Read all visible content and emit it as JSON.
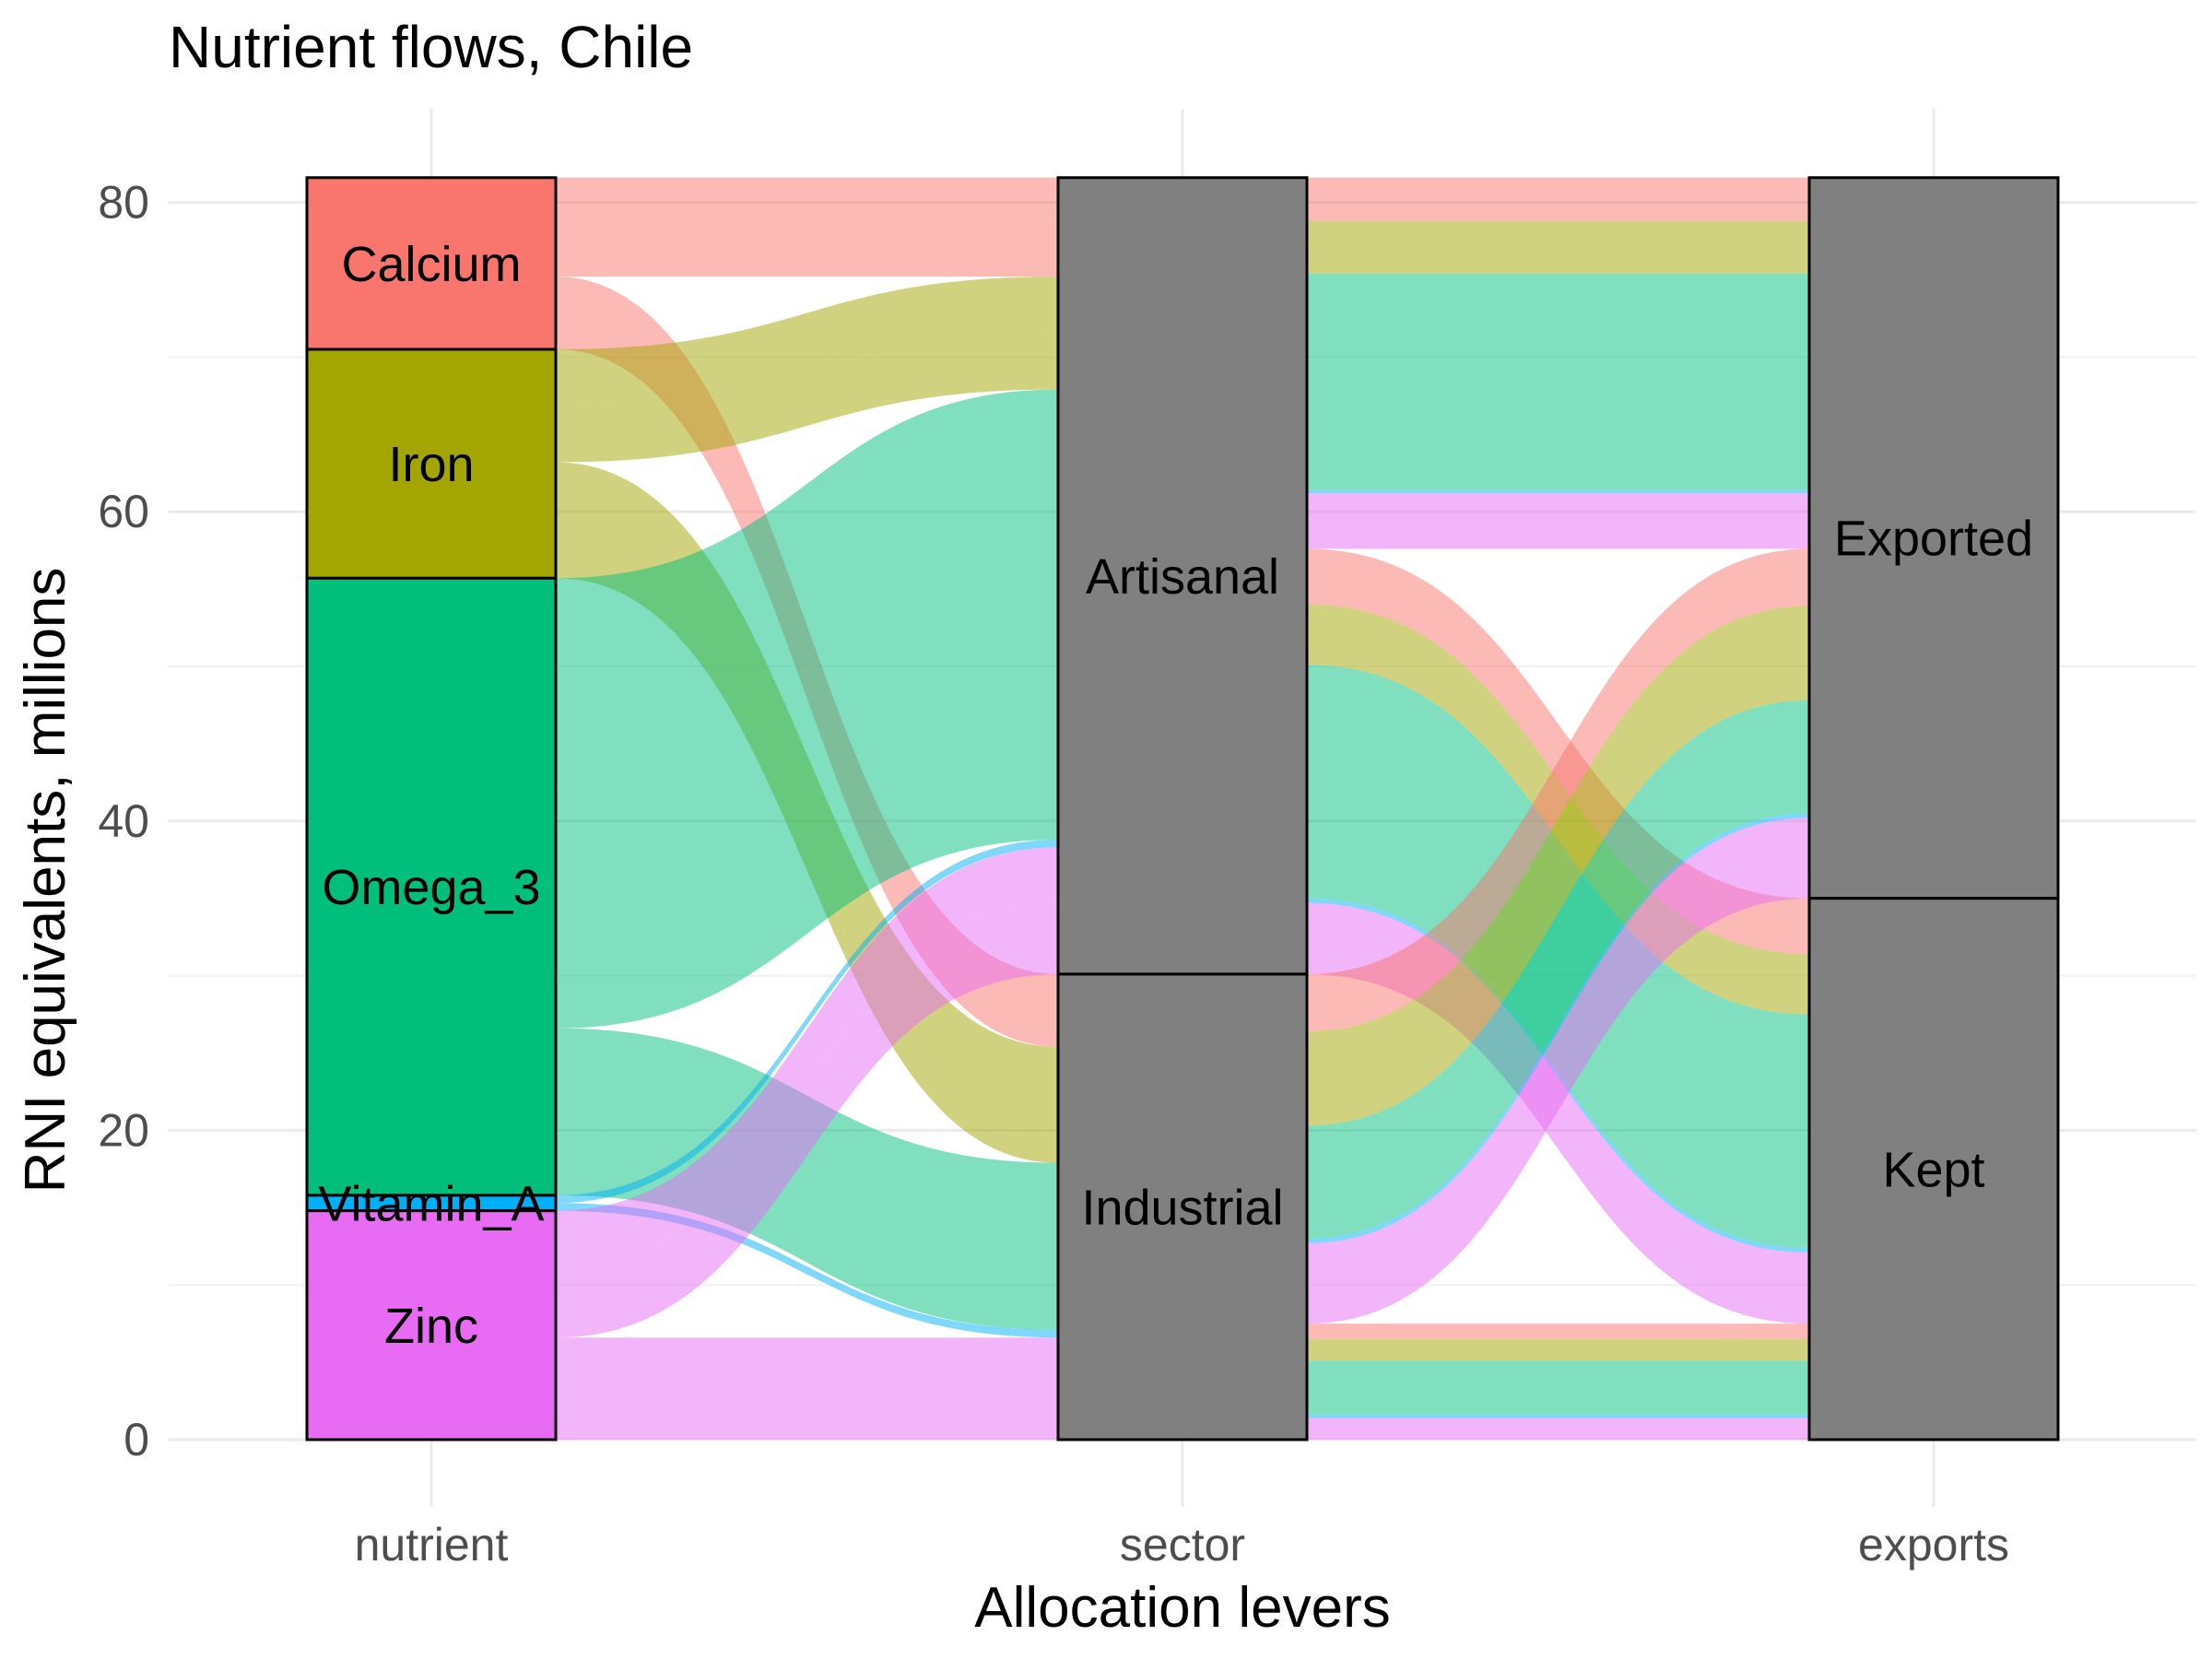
{
  "chart_data": {
    "type": "alluvial",
    "title": "Nutrient flows, Chile",
    "xlabel": "Allocation levers",
    "ylabel": "RNI equivalents, millions",
    "ylim": [
      0,
      82
    ],
    "y_ticks": [
      0,
      20,
      40,
      60,
      80
    ],
    "grid": true,
    "axes": [
      "nutrient",
      "sector",
      "exports"
    ],
    "colors": {
      "Calcium": "#F8766D",
      "Iron": "#A3A500",
      "Omega_3": "#00BF7D",
      "Vitamin_A": "#00B0F6",
      "Zinc": "#E76BF3",
      "stratum_fill": "#808080"
    },
    "flow_alpha": 0.5,
    "strata": {
      "nutrient": [
        "Calcium",
        "Iron",
        "Omega_3",
        "Vitamin_A",
        "Zinc"
      ],
      "sector": [
        "Artisanal",
        "Industrial"
      ],
      "exports": [
        "Exported",
        "Kept"
      ]
    },
    "flows": [
      {
        "nutrient": "Calcium",
        "sector": "Artisanal",
        "exports": "Exported",
        "value": 2.8
      },
      {
        "nutrient": "Calcium",
        "sector": "Artisanal",
        "exports": "Kept",
        "value": 3.6
      },
      {
        "nutrient": "Calcium",
        "sector": "Industrial",
        "exports": "Exported",
        "value": 3.7
      },
      {
        "nutrient": "Calcium",
        "sector": "Industrial",
        "exports": "Kept",
        "value": 1.0
      },
      {
        "nutrient": "Iron",
        "sector": "Artisanal",
        "exports": "Exported",
        "value": 3.4
      },
      {
        "nutrient": "Iron",
        "sector": "Artisanal",
        "exports": "Kept",
        "value": 3.9
      },
      {
        "nutrient": "Iron",
        "sector": "Industrial",
        "exports": "Exported",
        "value": 6.1
      },
      {
        "nutrient": "Iron",
        "sector": "Industrial",
        "exports": "Kept",
        "value": 1.4
      },
      {
        "nutrient": "Omega_3",
        "sector": "Artisanal",
        "exports": "Exported",
        "value": 14.0
      },
      {
        "nutrient": "Omega_3",
        "sector": "Artisanal",
        "exports": "Kept",
        "value": 15.1
      },
      {
        "nutrient": "Omega_3",
        "sector": "Industrial",
        "exports": "Exported",
        "value": 7.3
      },
      {
        "nutrient": "Omega_3",
        "sector": "Industrial",
        "exports": "Kept",
        "value": 3.5
      },
      {
        "nutrient": "Vitamin_A",
        "sector": "Artisanal",
        "exports": "Exported",
        "value": 0.2
      },
      {
        "nutrient": "Vitamin_A",
        "sector": "Artisanal",
        "exports": "Kept",
        "value": 0.3
      },
      {
        "nutrient": "Vitamin_A",
        "sector": "Industrial",
        "exports": "Exported",
        "value": 0.3
      },
      {
        "nutrient": "Vitamin_A",
        "sector": "Industrial",
        "exports": "Kept",
        "value": 0.2
      },
      {
        "nutrient": "Zinc",
        "sector": "Artisanal",
        "exports": "Exported",
        "value": 3.6
      },
      {
        "nutrient": "Zinc",
        "sector": "Artisanal",
        "exports": "Kept",
        "value": 4.6
      },
      {
        "nutrient": "Zinc",
        "sector": "Industrial",
        "exports": "Exported",
        "value": 5.2
      },
      {
        "nutrient": "Zinc",
        "sector": "Industrial",
        "exports": "Kept",
        "value": 1.4
      }
    ]
  }
}
